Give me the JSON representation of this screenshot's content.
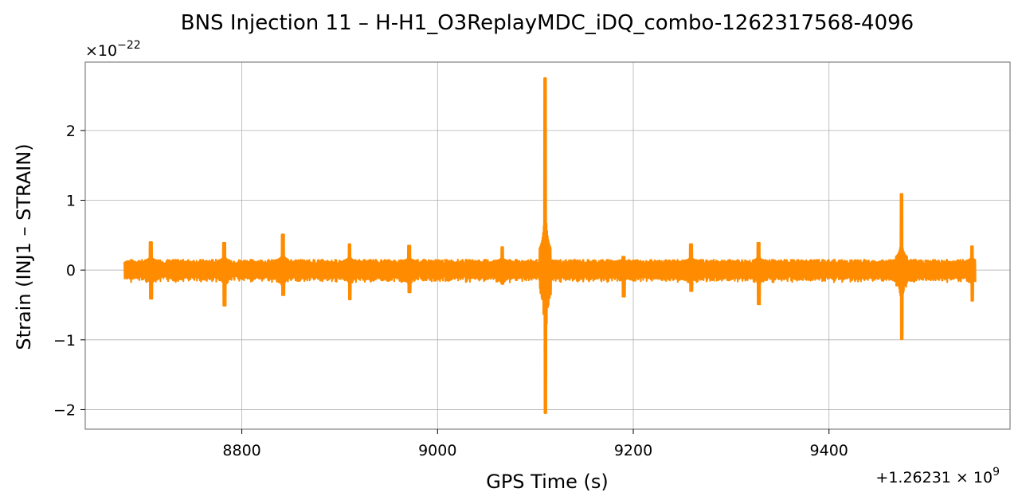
{
  "chart_data": {
    "type": "line",
    "title": "BNS Injection 11 – H-H1_O3ReplayMDC_iDQ_combo-1262317568-4096",
    "xlabel": "GPS Time (s)",
    "ylabel": "Strain (INJ1 – STRAIN)",
    "y_scale_label": "×10",
    "y_scale_exp": "−22",
    "x_offset_label": "+1.26231 × 10",
    "x_offset_exp": "9",
    "xlim": [
      8640,
      9585
    ],
    "ylim": [
      -2.28,
      2.98
    ],
    "x_ticks": [
      8800,
      9000,
      9200,
      9400
    ],
    "x_tick_labels": [
      "8800",
      "9000",
      "9200",
      "9400"
    ],
    "y_ticks": [
      -2,
      -1,
      0,
      1,
      2
    ],
    "y_tick_labels": [
      "−2",
      "−1",
      "0",
      "1",
      "2"
    ],
    "grid": true,
    "line_color": "#ff8c00",
    "series": [
      {
        "x_range": [
          8680,
          9550
        ],
        "baseline_amplitude": 0.12,
        "spikes": [
          {
            "x": 8707,
            "max": 0.4,
            "min": -0.41
          },
          {
            "x": 8782,
            "max": 0.39,
            "min": -0.51
          },
          {
            "x": 8842,
            "max": 0.51,
            "min": -0.36
          },
          {
            "x": 8910,
            "max": 0.37,
            "min": -0.42
          },
          {
            "x": 8971,
            "max": 0.35,
            "min": -0.32
          },
          {
            "x": 9066,
            "max": 0.33,
            "min": -0.2
          },
          {
            "x": 9110,
            "max": 2.75,
            "min": -2.05
          },
          {
            "x": 9190,
            "max": 0.19,
            "min": -0.38
          },
          {
            "x": 9259,
            "max": 0.37,
            "min": -0.3
          },
          {
            "x": 9328,
            "max": 0.39,
            "min": -0.49
          },
          {
            "x": 9474,
            "max": 1.09,
            "min": -0.99
          },
          {
            "x": 9546,
            "max": 0.34,
            "min": -0.44
          }
        ]
      }
    ]
  }
}
